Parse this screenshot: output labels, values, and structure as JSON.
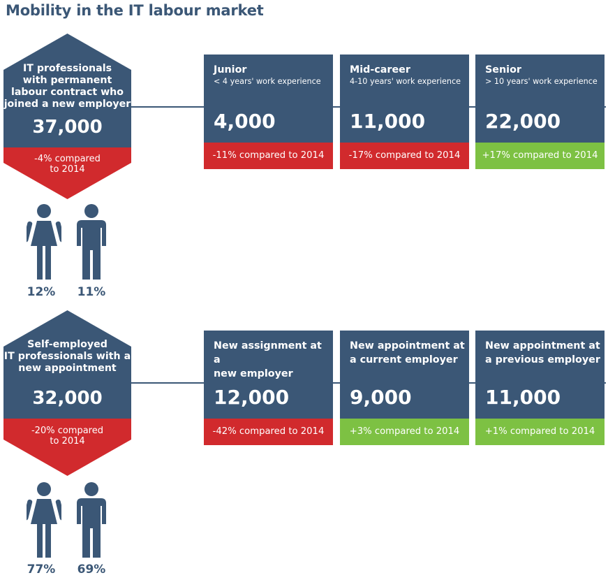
{
  "title": "Mobility in the IT labour market",
  "colors": {
    "navy": "#3b5776",
    "red": "#d12a2d",
    "green": "#7dc143"
  },
  "sections": [
    {
      "hex": {
        "label_lines": [
          "IT professionals",
          "with permanent",
          "labour contract who",
          "joined a new employer"
        ],
        "value": "37,000",
        "change_lines": [
          "-4% compared",
          "to 2014"
        ]
      },
      "cards": [
        {
          "title_lines": [
            "Junior"
          ],
          "subtitle": "< 4 years' work experience",
          "value": "4,000",
          "change": "-11% compared to 2014",
          "trend": "red"
        },
        {
          "title_lines": [
            "Mid-career"
          ],
          "subtitle": "4-10 years' work experience",
          "value": "11,000",
          "change": "-17% compared to 2014",
          "trend": "red"
        },
        {
          "title_lines": [
            "Senior"
          ],
          "subtitle": "> 10 years' work experience",
          "value": "22,000",
          "change": "+17% compared to 2014",
          "trend": "green"
        }
      ],
      "gender": {
        "female_pct": "12%",
        "male_pct": "11%"
      }
    },
    {
      "hex": {
        "label_lines": [
          "Self-employed",
          "IT professionals with a",
          "new appointment"
        ],
        "value": "32,000",
        "change_lines": [
          "-20% compared",
          "to 2014"
        ]
      },
      "cards": [
        {
          "title_lines": [
            "New assignment at a",
            "new employer"
          ],
          "subtitle": "",
          "value": "12,000",
          "change": "-42% compared to 2014",
          "trend": "red"
        },
        {
          "title_lines": [
            "New appointment at",
            "a current employer"
          ],
          "subtitle": "",
          "value": "9,000",
          "change": "+3% compared to 2014",
          "trend": "green"
        },
        {
          "title_lines": [
            "New appointment at",
            "a previous employer"
          ],
          "subtitle": "",
          "value": "11,000",
          "change": "+1% compared to 2014",
          "trend": "green"
        }
      ],
      "gender": {
        "female_pct": "77%",
        "male_pct": "69%"
      }
    }
  ]
}
